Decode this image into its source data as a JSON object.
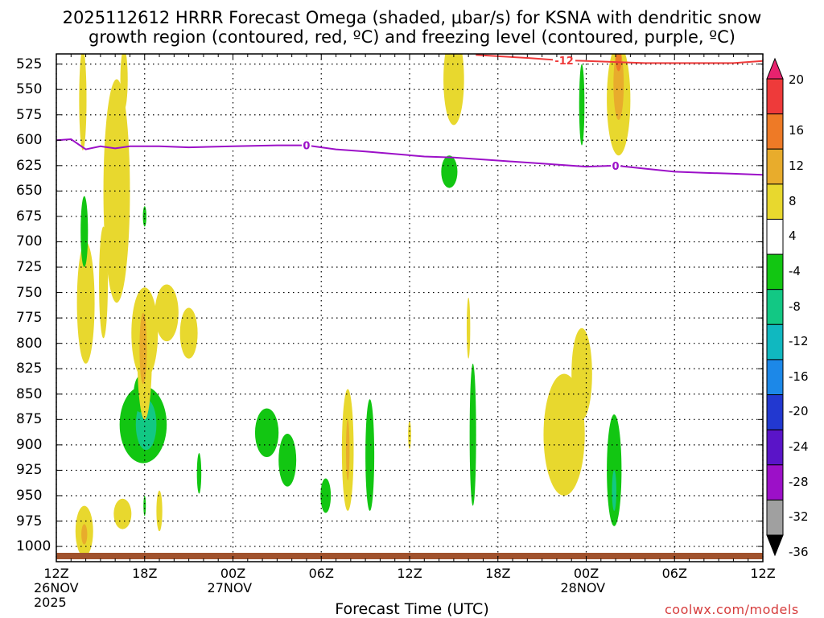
{
  "title_line1": "2025112612 HRRR Forecast Omega (shaded, μbar/s) for KSNA with dendritic snow",
  "title_line2": "growth region (contoured, red, ºC) and freezing level (contoured, purple, ºC)",
  "xaxis_title": "Forecast Time (UTC)",
  "credit": "coolwx.com/models",
  "chart_data": {
    "type": "heatmap",
    "y_ticks": [
      525,
      550,
      575,
      600,
      625,
      650,
      675,
      700,
      725,
      750,
      775,
      800,
      825,
      850,
      875,
      900,
      925,
      950,
      975,
      1000
    ],
    "y_tick_labels": [
      "525",
      "550",
      "575",
      "600",
      "625",
      "650",
      "675",
      "700",
      "725",
      "750",
      "775",
      "800",
      "825",
      "850",
      "875",
      "900",
      "925",
      "950",
      "975",
      "1000"
    ],
    "ylim_hPa": [
      515,
      1015
    ],
    "x_tick_hours": [
      0,
      6,
      12,
      18,
      24,
      30,
      36,
      42,
      48
    ],
    "x_tick_labels": [
      "12Z",
      "18Z",
      "00Z",
      "06Z",
      "12Z",
      "18Z",
      "00Z",
      "06Z",
      "12Z"
    ],
    "x_sub_labels": [
      {
        "hour": 0,
        "text": "26NOV"
      },
      {
        "hour": 0,
        "text": "2025",
        "row": 2
      },
      {
        "hour": 12,
        "text": "27NOV"
      },
      {
        "hour": 36,
        "text": "28NOV"
      }
    ],
    "xlim_hours": [
      0,
      48
    ],
    "grid": true,
    "colorbar": {
      "labels": [
        "20",
        "16",
        "12",
        "8",
        "4",
        "-4",
        "-8",
        "-12",
        "-16",
        "-20",
        "-24",
        "-28",
        "-32",
        "-36"
      ],
      "colors": [
        "#e8226e",
        "#ee3a3a",
        "#ee7a26",
        "#e8ac2c",
        "#e8d82e",
        "#ffffff",
        "#12c612",
        "#12c884",
        "#10b8c0",
        "#1c88e8",
        "#2238d0",
        "#5a14c8",
        "#9c10c8",
        "#a0a0a0",
        "#000000"
      ]
    },
    "freezing_level": {
      "label": "0",
      "color": "#9c10c8",
      "points": [
        [
          0,
          600
        ],
        [
          1,
          599
        ],
        [
          2,
          609
        ],
        [
          3,
          606
        ],
        [
          4,
          608
        ],
        [
          5,
          606
        ],
        [
          7,
          606
        ],
        [
          9,
          607
        ],
        [
          12,
          606
        ],
        [
          15,
          605
        ],
        [
          17,
          605
        ],
        [
          19,
          609
        ],
        [
          21,
          611
        ],
        [
          25,
          616
        ],
        [
          27,
          617
        ],
        [
          30,
          620
        ],
        [
          33,
          623
        ],
        [
          36,
          626
        ],
        [
          38,
          625
        ],
        [
          40,
          628
        ],
        [
          42,
          631
        ],
        [
          44,
          632
        ],
        [
          46,
          633
        ],
        [
          48,
          634
        ]
      ]
    },
    "dgz_top": {
      "label": "-12",
      "color": "#ee3a3a",
      "points": [
        [
          28.5,
          516
        ],
        [
          32,
          519
        ],
        [
          34,
          521
        ],
        [
          36,
          522
        ],
        [
          38,
          523
        ],
        [
          40,
          524
        ],
        [
          44,
          524
        ],
        [
          46,
          524
        ],
        [
          48,
          522
        ]
      ]
    },
    "shaded_regions": [
      {
        "hour": 1.8,
        "p": 560,
        "rh": 0.25,
        "rp": 50,
        "value": 5,
        "color": "#e8d82e"
      },
      {
        "hour": 4.6,
        "p": 540,
        "rh": 0.25,
        "rp": 30,
        "value": 5,
        "color": "#e8d82e"
      },
      {
        "hour": 4.1,
        "p": 650,
        "rh": 0.9,
        "rp": 110,
        "value": 5,
        "color": "#e8d82e"
      },
      {
        "hour": 2.0,
        "p": 760,
        "rh": 0.6,
        "rp": 60,
        "value": 5,
        "color": "#e8d82e"
      },
      {
        "hour": 3.2,
        "p": 740,
        "rh": 0.3,
        "rp": 55,
        "value": 5,
        "color": "#e8d82e"
      },
      {
        "hour": 1.9,
        "p": 690,
        "rh": 0.25,
        "rp": 35,
        "value": -6,
        "color": "#12c612"
      },
      {
        "hour": 5.9,
        "p": 880,
        "rh": 1.6,
        "rp": 38,
        "value": -6,
        "color": "#12c612"
      },
      {
        "hour": 6.1,
        "p": 880,
        "rh": 0.7,
        "rp": 25,
        "value": -10,
        "color": "#12c884"
      },
      {
        "hour": 5.7,
        "p": 850,
        "rh": 0.45,
        "rp": 18,
        "value": -6,
        "color": "#12c612"
      },
      {
        "hour": 1.9,
        "p": 985,
        "rh": 0.6,
        "rp": 25,
        "value": 5,
        "color": "#e8d82e"
      },
      {
        "hour": 1.9,
        "p": 988,
        "rh": 0.2,
        "rp": 10,
        "value": 9,
        "color": "#e8ac2c"
      },
      {
        "hour": 4.5,
        "p": 968,
        "rh": 0.6,
        "rp": 15,
        "value": 5,
        "color": "#e8d82e"
      },
      {
        "hour": 6.0,
        "p": 790,
        "rh": 0.9,
        "rp": 45,
        "value": 5,
        "color": "#e8d82e"
      },
      {
        "hour": 6.0,
        "p": 810,
        "rh": 0.5,
        "rp": 65,
        "value": 5,
        "color": "#e8d82e"
      },
      {
        "hour": 5.9,
        "p": 805,
        "rh": 0.25,
        "rp": 35,
        "value": 9,
        "color": "#e8ac2c"
      },
      {
        "hour": 7.5,
        "p": 770,
        "rh": 0.8,
        "rp": 28,
        "value": 5,
        "color": "#e8d82e"
      },
      {
        "hour": 9.0,
        "p": 790,
        "rh": 0.6,
        "rp": 25,
        "value": 5,
        "color": "#e8d82e"
      },
      {
        "hour": 6.0,
        "p": 675,
        "rh": 0.12,
        "rp": 10,
        "value": -6,
        "color": "#12c612"
      },
      {
        "hour": 6.0,
        "p": 960,
        "rh": 0.08,
        "rp": 10,
        "value": -6,
        "color": "#12c612"
      },
      {
        "hour": 7.0,
        "p": 965,
        "rh": 0.2,
        "rp": 20,
        "value": 5,
        "color": "#e8d82e"
      },
      {
        "hour": 9.7,
        "p": 928,
        "rh": 0.15,
        "rp": 20,
        "value": -6,
        "color": "#12c612"
      },
      {
        "hour": 14.3,
        "p": 888,
        "rh": 0.8,
        "rp": 24,
        "value": -6,
        "color": "#12c612"
      },
      {
        "hour": 15.7,
        "p": 915,
        "rh": 0.6,
        "rp": 26,
        "value": -6,
        "color": "#12c612"
      },
      {
        "hour": 18.3,
        "p": 950,
        "rh": 0.35,
        "rp": 17,
        "value": -6,
        "color": "#12c612"
      },
      {
        "hour": 19.8,
        "p": 905,
        "rh": 0.4,
        "rp": 60,
        "value": 5,
        "color": "#e8d82e"
      },
      {
        "hour": 19.8,
        "p": 905,
        "rh": 0.12,
        "rp": 30,
        "value": 9,
        "color": "#e8ac2c"
      },
      {
        "hour": 21.3,
        "p": 910,
        "rh": 0.3,
        "rp": 55,
        "value": -6,
        "color": "#12c612"
      },
      {
        "hour": 24.0,
        "p": 890,
        "rh": 0.1,
        "rp": 14,
        "value": 5,
        "color": "#e8d82e"
      },
      {
        "hour": 27.0,
        "p": 540,
        "rh": 0.7,
        "rp": 45,
        "value": 5,
        "color": "#e8d82e"
      },
      {
        "hour": 26.7,
        "p": 631,
        "rh": 0.55,
        "rp": 16,
        "value": -6,
        "color": "#12c612"
      },
      {
        "hour": 28.0,
        "p": 785,
        "rh": 0.12,
        "rp": 30,
        "value": 5,
        "color": "#e8d82e"
      },
      {
        "hour": 28.3,
        "p": 890,
        "rh": 0.22,
        "rp": 70,
        "value": -6,
        "color": "#12c612"
      },
      {
        "hour": 34.5,
        "p": 890,
        "rh": 1.4,
        "rp": 60,
        "value": 5,
        "color": "#e8d82e"
      },
      {
        "hour": 35.7,
        "p": 830,
        "rh": 0.7,
        "rp": 45,
        "value": 5,
        "color": "#e8d82e"
      },
      {
        "hour": 35.7,
        "p": 565,
        "rh": 0.18,
        "rp": 40,
        "value": -6,
        "color": "#12c612"
      },
      {
        "hour": 38.2,
        "p": 560,
        "rh": 0.8,
        "rp": 55,
        "value": 5,
        "color": "#e8d82e"
      },
      {
        "hour": 38.2,
        "p": 545,
        "rh": 0.35,
        "rp": 35,
        "value": 9,
        "color": "#e8ac2c"
      },
      {
        "hour": 38.2,
        "p": 520,
        "rh": 0.2,
        "rp": 12,
        "value": 13,
        "color": "#ee7a26"
      },
      {
        "hour": 37.9,
        "p": 925,
        "rh": 0.5,
        "rp": 55,
        "value": -6,
        "color": "#12c612"
      },
      {
        "hour": 37.9,
        "p": 945,
        "rh": 0.15,
        "rp": 20,
        "value": -10,
        "color": "#12c884"
      }
    ]
  }
}
